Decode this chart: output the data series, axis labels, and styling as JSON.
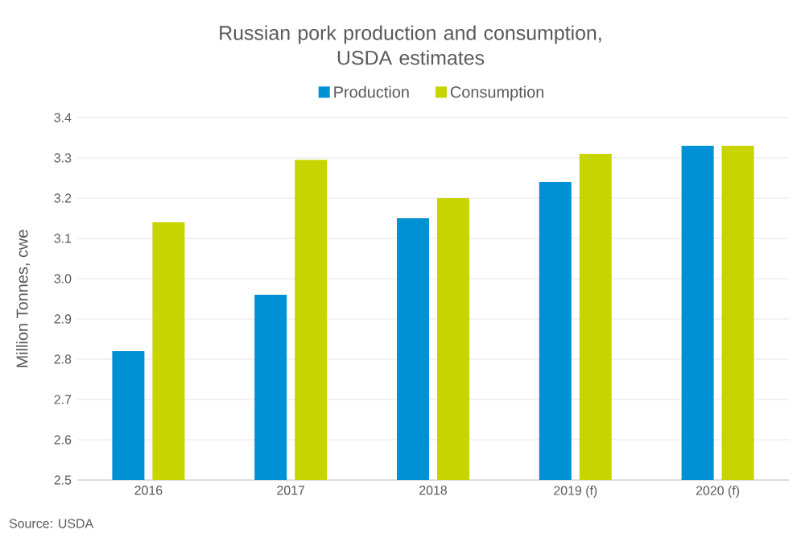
{
  "chart_data": {
    "type": "bar",
    "title": "Russian pork production and consumption,\nUSDA estimates",
    "ylabel": "Million Tonnes, cwe",
    "categories": [
      "2016",
      "2017",
      "2018",
      "2019 (f)",
      "2020 (f)"
    ],
    "series": [
      {
        "name": "Production",
        "color": "#0090d4",
        "values": [
          2.82,
          2.96,
          3.15,
          3.24,
          3.33
        ]
      },
      {
        "name": "Consumption",
        "color": "#c8d400",
        "values": [
          3.14,
          3.295,
          3.2,
          3.31,
          3.33
        ]
      }
    ],
    "ylim": [
      2.5,
      3.4
    ],
    "yticks": [
      2.5,
      2.6,
      2.7,
      2.8,
      2.9,
      {
        "value": 3,
        "label": "3.0"
      },
      3.1,
      3.2,
      3.3,
      3.4
    ],
    "grid": "y",
    "legend": "top",
    "annotations": [
      "Source: USDA"
    ]
  }
}
